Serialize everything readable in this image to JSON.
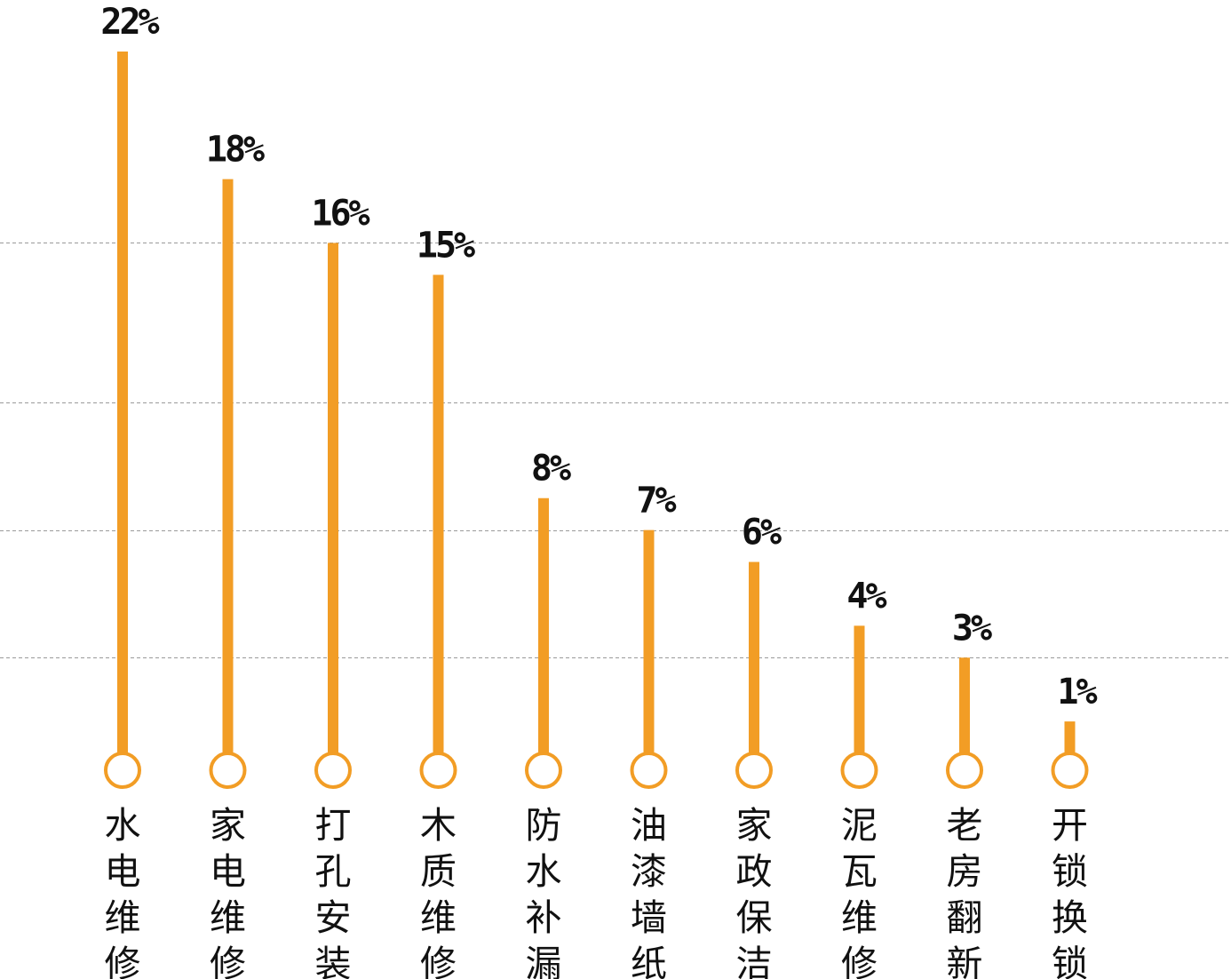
{
  "chart_data": {
    "type": "bar",
    "title": "",
    "xlabel": "",
    "ylabel": "",
    "categories": [
      "水电维修",
      "家电维修",
      "打孔安装",
      "木质维修",
      "防水补漏",
      "油漆墙纸",
      "家政保洁",
      "泥瓦维修",
      "老房翻新",
      "开锁换锁"
    ],
    "values": [
      22,
      18,
      16,
      15,
      8,
      7,
      6,
      4,
      3,
      1
    ],
    "value_labels": [
      "22%",
      "18%",
      "16%",
      "15%",
      "8%",
      "7%",
      "6%",
      "4%",
      "3%",
      "1%"
    ],
    "unit": "%",
    "ylim": [
      0,
      22
    ],
    "gridlines": [
      3,
      7,
      11,
      16
    ],
    "grid": true,
    "legend": "none",
    "bar_color": "#f29d25",
    "label_color": "#111111",
    "grid_color": "#9a9a9a"
  }
}
